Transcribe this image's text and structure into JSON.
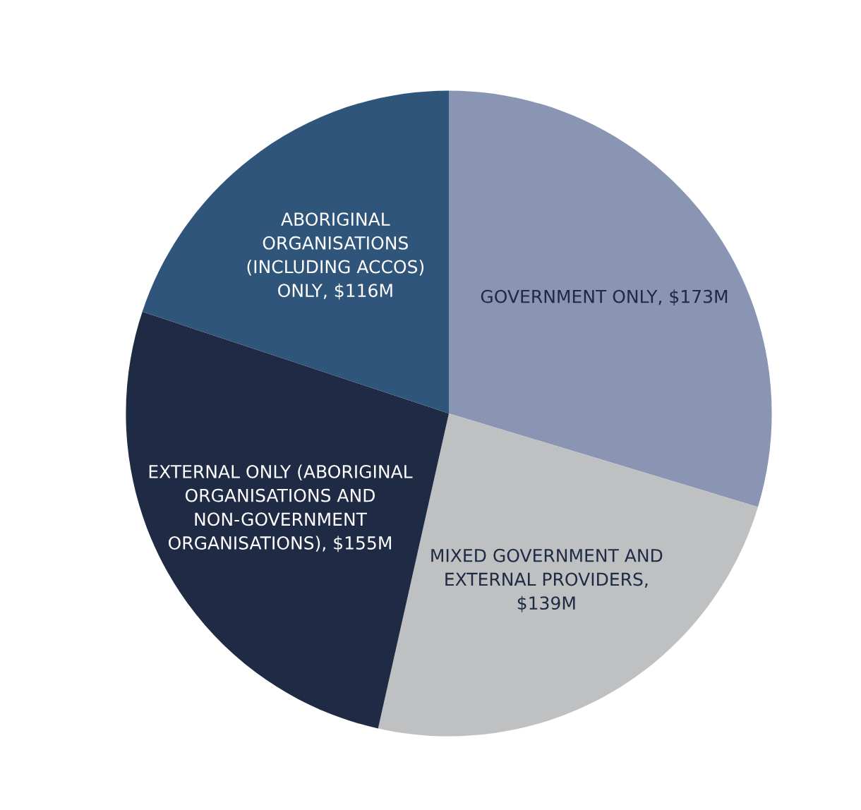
{
  "chart_data": {
    "type": "pie",
    "categories": [
      "GOVERNMENT ONLY, $173M",
      "MIXED GOVERNMENT AND\nEXTERNAL PROVIDERS,\n$139M",
      "EXTERNAL ONLY (ABORIGINAL\nORGANISATIONS AND\nNON-GOVERNMENT\nORGANISATIONS), $155M",
      "ABORIGINAL\nORGANISATIONS\n(INCLUDING ACCOS)\nONLY, $116M"
    ],
    "values": [
      173,
      139,
      155,
      116
    ],
    "colors": [
      "#8a94b3",
      "#bfc0c2",
      "#1f2a44",
      "#30557a"
    ]
  }
}
